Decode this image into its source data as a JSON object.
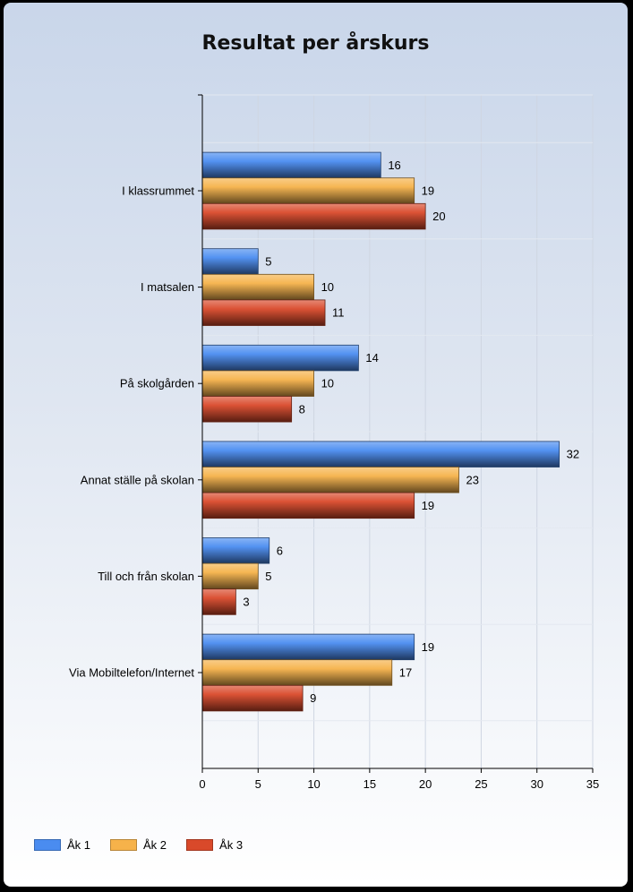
{
  "chart_data": {
    "type": "bar",
    "orientation": "horizontal",
    "title": "Resultat per årskurs",
    "categories": [
      "I klassrummet",
      "I matsalen",
      "På skolgården",
      "Annat ställe på skolan",
      "Till och från skolan",
      "Via Mobiltelefon/Internet"
    ],
    "series": [
      {
        "name": "Åk 1",
        "color": "#4a8cf0",
        "values": [
          16,
          5,
          14,
          32,
          6,
          19
        ]
      },
      {
        "name": "Åk 2",
        "color": "#f6b24a",
        "values": [
          19,
          10,
          10,
          23,
          5,
          17
        ]
      },
      {
        "name": "Åk 3",
        "color": "#d9492a",
        "values": [
          20,
          11,
          8,
          19,
          3,
          9
        ]
      }
    ],
    "xlim": [
      0,
      35
    ],
    "xticks": [
      0,
      5,
      10,
      15,
      20,
      25,
      30,
      35
    ],
    "grid": true,
    "legend_position": "bottom-left",
    "data_labels": true
  }
}
